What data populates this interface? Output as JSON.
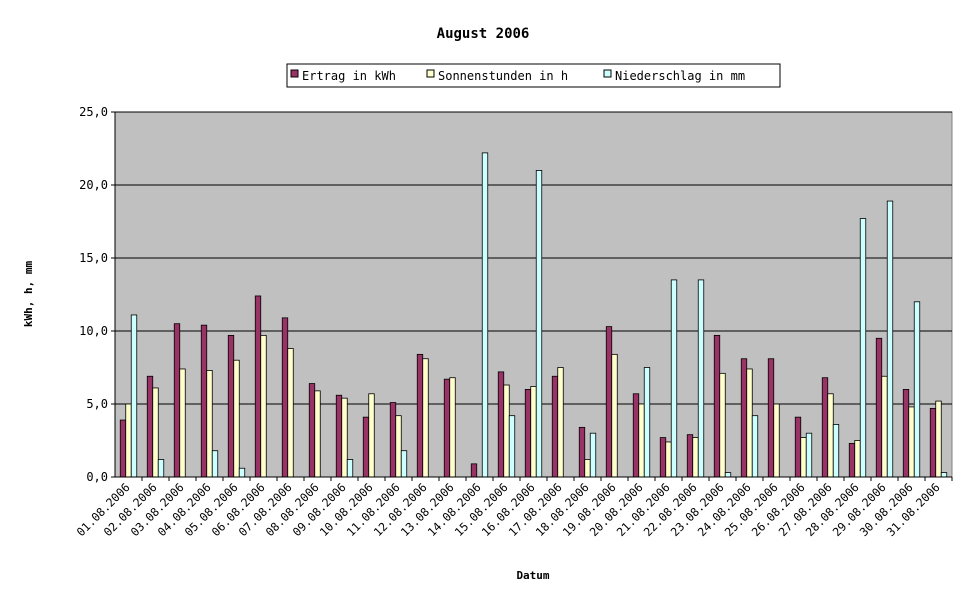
{
  "chart_data": {
    "type": "bar",
    "title": "August 2006",
    "xlabel": "Datum",
    "ylabel": "kWh, h, mm",
    "ylim": [
      0,
      25
    ],
    "yticks": [
      "0,0",
      "5,0",
      "10,0",
      "15,0",
      "20,0",
      "25,0"
    ],
    "grid": true,
    "legend_position": "top",
    "plot_background": "#c0c0c0",
    "categories": [
      "01.08.2006",
      "02.08.2006",
      "03.08.2006",
      "04.08.2006",
      "05.08.2006",
      "06.08.2006",
      "07.08.2006",
      "08.08.2006",
      "09.08.2006",
      "10.08.2006",
      "11.08.2006",
      "12.08.2006",
      "13.08.2006",
      "14.08.2006",
      "15.08.2006",
      "16.08.2006",
      "17.08.2006",
      "18.08.2006",
      "19.08.2006",
      "20.08.2006",
      "21.08.2006",
      "22.08.2006",
      "23.08.2006",
      "24.08.2006",
      "25.08.2006",
      "26.08.2006",
      "27.08.2006",
      "28.08.2006",
      "29.08.2006",
      "30.08.2006",
      "31.08.2006"
    ],
    "series": [
      {
        "name": "Ertrag in kWh",
        "color": "#993366",
        "values": [
          3.9,
          6.9,
          10.5,
          10.4,
          9.7,
          12.4,
          10.9,
          6.4,
          5.6,
          4.1,
          5.1,
          8.4,
          6.7,
          0.9,
          7.2,
          6.0,
          6.9,
          3.4,
          10.3,
          5.7,
          2.7,
          2.9,
          9.7,
          8.1,
          8.1,
          4.1,
          6.8,
          2.3,
          9.5,
          6.0,
          4.7
        ]
      },
      {
        "name": "Sonnenstunden in h",
        "color": "#ffffcc",
        "values": [
          5.0,
          6.1,
          7.4,
          7.3,
          8.0,
          9.7,
          8.8,
          5.9,
          5.4,
          5.7,
          4.2,
          8.1,
          6.8,
          0.0,
          6.3,
          6.2,
          7.5,
          1.2,
          8.4,
          5.0,
          2.4,
          2.7,
          7.1,
          7.4,
          5.0,
          2.7,
          5.7,
          2.5,
          6.9,
          4.8,
          5.2
        ]
      },
      {
        "name": "Niederschlag in mm",
        "color": "#ccffff",
        "values": [
          11.1,
          1.2,
          0.0,
          1.8,
          0.6,
          0.0,
          0.0,
          0.0,
          1.2,
          0.0,
          1.8,
          0.0,
          0.0,
          22.2,
          4.2,
          21.0,
          0.0,
          3.0,
          0.0,
          7.5,
          13.5,
          13.5,
          0.3,
          4.2,
          0.0,
          3.0,
          3.6,
          17.7,
          18.9,
          12.0,
          0.3
        ]
      }
    ]
  }
}
